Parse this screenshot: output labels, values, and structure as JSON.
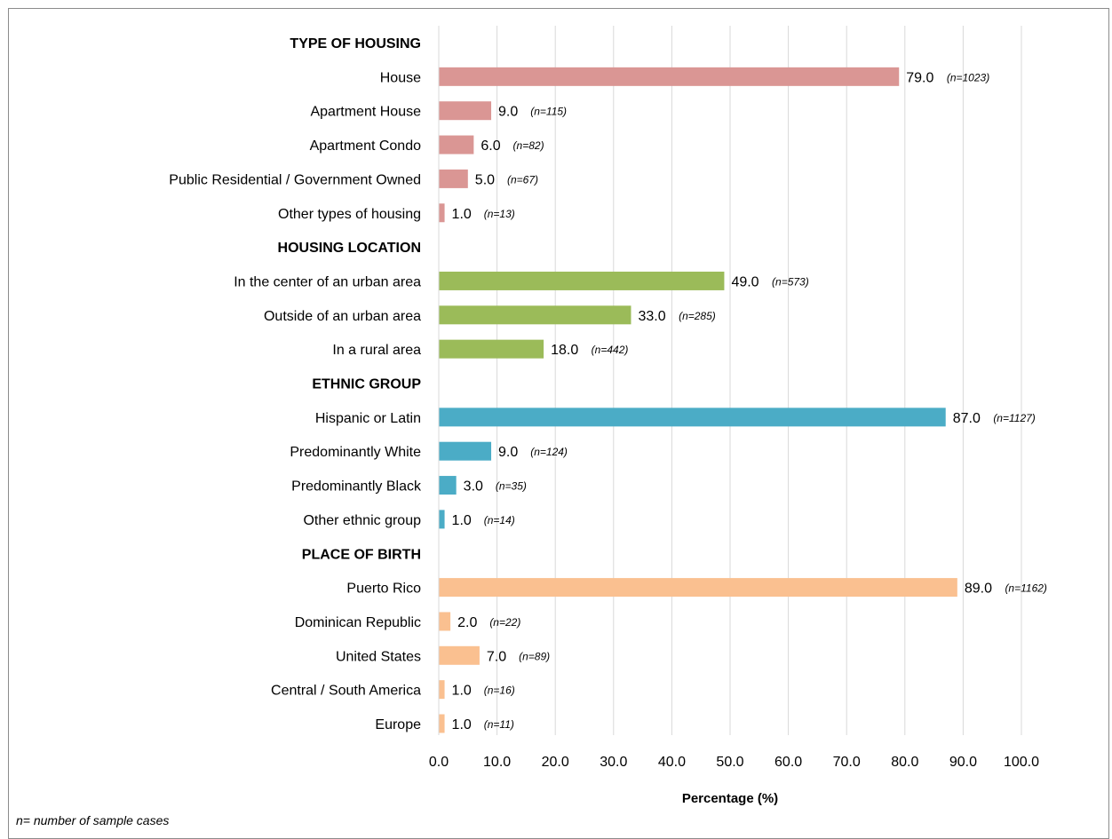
{
  "chart_data": {
    "type": "bar",
    "orientation": "horizontal",
    "xlabel": "Percentage (%)",
    "xlim": [
      0,
      100
    ],
    "xticks": [
      "0.0",
      "10.0",
      "20.0",
      "30.0",
      "40.0",
      "50.0",
      "60.0",
      "70.0",
      "80.0",
      "90.0",
      "100.0"
    ],
    "grid": "vertical",
    "groups": [
      {
        "name": "TYPE OF HOUSING",
        "color": "#da9694",
        "items": [
          {
            "label": "House",
            "value": 79.0,
            "value_label": "79.0",
            "n": "(n=1023)"
          },
          {
            "label": "Apartment House",
            "value": 9.0,
            "value_label": "9.0",
            "n": "(n=115)"
          },
          {
            "label": "Apartment Condo",
            "value": 6.0,
            "value_label": "6.0",
            "n": "(n=82)"
          },
          {
            "label": "Public Residential / Government Owned",
            "value": 5.0,
            "value_label": "5.0",
            "n": "(n=67)"
          },
          {
            "label": "Other types of housing",
            "value": 1.0,
            "value_label": "1.0",
            "n": "(n=13)"
          }
        ]
      },
      {
        "name": "HOUSING LOCATION",
        "color": "#9bbb59",
        "items": [
          {
            "label": "In the center of an urban area",
            "value": 49.0,
            "value_label": "49.0",
            "n": "(n=573)"
          },
          {
            "label": "Outside of an urban area",
            "value": 33.0,
            "value_label": "33.0",
            "n": "(n=285)"
          },
          {
            "label": "In a rural area",
            "value": 18.0,
            "value_label": "18.0",
            "n": "(n=442)"
          }
        ]
      },
      {
        "name": "ETHNIC GROUP",
        "color": "#4bacc6",
        "items": [
          {
            "label": "Hispanic or Latin",
            "value": 87.0,
            "value_label": "87.0",
            "n": "(n=1127)"
          },
          {
            "label": "Predominantly White",
            "value": 9.0,
            "value_label": "9.0",
            "n": "(n=124)"
          },
          {
            "label": "Predominantly Black",
            "value": 3.0,
            "value_label": "3.0",
            "n": "(n=35)"
          },
          {
            "label": "Other ethnic group",
            "value": 1.0,
            "value_label": "1.0",
            "n": "(n=14)"
          }
        ]
      },
      {
        "name": "PLACE OF BIRTH",
        "color": "#fac090",
        "items": [
          {
            "label": "Puerto Rico",
            "value": 89.0,
            "value_label": "89.0",
            "n": "(n=1162)"
          },
          {
            "label": "Dominican Republic",
            "value": 2.0,
            "value_label": "2.0",
            "n": "(n=22)"
          },
          {
            "label": "United States",
            "value": 7.0,
            "value_label": "7.0",
            "n": "(n=89)"
          },
          {
            "label": "Central / South America",
            "value": 1.0,
            "value_label": "1.0",
            "n": "(n=16)"
          },
          {
            "label": "Europe",
            "value": 1.0,
            "value_label": "1.0",
            "n": "(n=11)"
          }
        ]
      }
    ]
  },
  "footnote": "n= number of sample cases"
}
